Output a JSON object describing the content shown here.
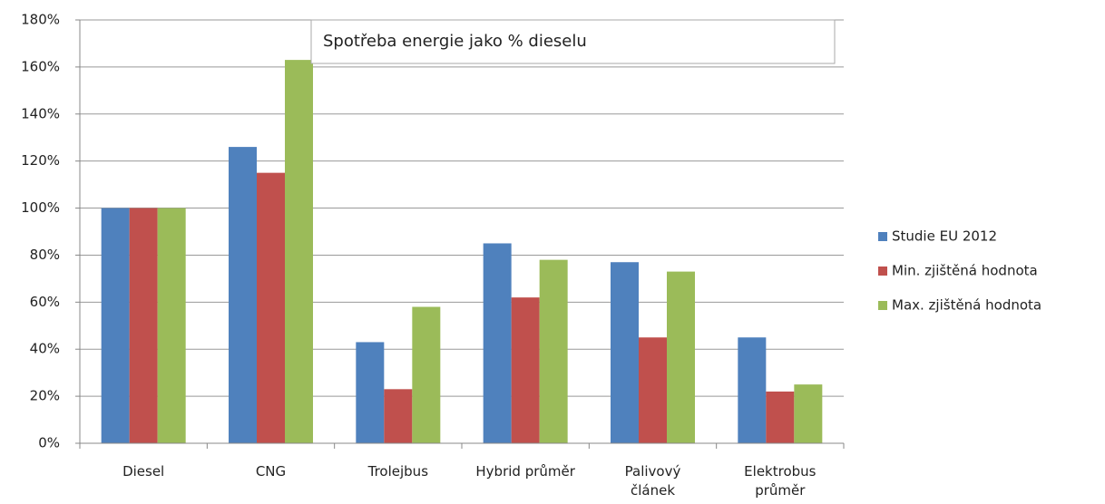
{
  "chart_data": {
    "type": "bar",
    "title": "Spotřeba energie jako % dieselu",
    "categories": [
      "Diesel",
      "CNG",
      "Trolejbus",
      "Hybrid průměr",
      "Palivový článek",
      "Elektrobus průměr"
    ],
    "series": [
      {
        "name": "Studie EU 2012",
        "color": "#4f81bd",
        "values": [
          100,
          126,
          43,
          85,
          77,
          45
        ]
      },
      {
        "name": "Min. zjištěná hodnota",
        "color": "#c0504d",
        "values": [
          100,
          115,
          23,
          62,
          45,
          22
        ]
      },
      {
        "name": "Max. zjištěná hodnota",
        "color": "#9bbb59",
        "values": [
          100,
          163,
          58,
          78,
          73,
          25
        ]
      }
    ],
    "ylim": [
      0,
      180
    ],
    "yticks": [
      {
        "value": 0,
        "label": "0%"
      },
      {
        "value": 20,
        "label": "20%"
      },
      {
        "value": 40,
        "label": "40%"
      },
      {
        "value": 60,
        "label": "60%"
      },
      {
        "value": 80,
        "label": "80%"
      },
      {
        "value": 100,
        "label": "100%"
      },
      {
        "value": 120,
        "label": "120%"
      },
      {
        "value": 140,
        "label": "140%"
      },
      {
        "value": 160,
        "label": "160%"
      },
      {
        "value": 180,
        "label": "180%"
      }
    ],
    "grid": true,
    "legend": "right"
  }
}
